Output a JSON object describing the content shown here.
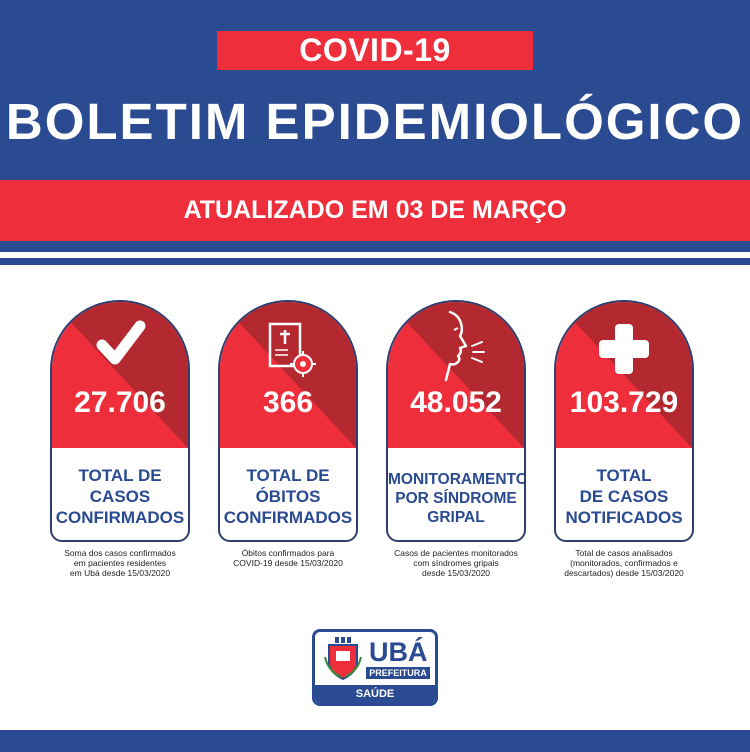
{
  "header": {
    "tag": "COVID-19",
    "title": "BOLETIM EPIDEMIOLÓGICO",
    "updated": "ATUALIZADO EM 03 DE MARÇO"
  },
  "colors": {
    "blue": "#2a4a91",
    "red": "#ee2f3b",
    "dark_red": "#b3292f"
  },
  "cards": [
    {
      "icon": "checkmark-icon",
      "number": "27.706",
      "label_lines": [
        "TOTAL DE",
        "CASOS",
        "CONFIRMADOS"
      ],
      "caption_lines": [
        "Soma dos casos confirmados",
        "em pacientes residentes",
        "em Ubá desde 15/03/2020"
      ]
    },
    {
      "icon": "death-certificate-virus-icon",
      "number": "366",
      "label_lines": [
        "TOTAL DE",
        "ÓBITOS",
        "CONFIRMADOS"
      ],
      "caption_lines": [
        "Óbitos confirmados para",
        "COVID-19 desde 15/03/2020"
      ]
    },
    {
      "icon": "coughing-face-icon",
      "number": "48.052",
      "label_lines": [
        "MONITORAMENTO",
        "POR SÍNDROME",
        "GRIPAL"
      ],
      "caption_lines": [
        "Casos de pacientes monitorados",
        "com síndromes gripais",
        "desde 15/03/2020"
      ]
    },
    {
      "icon": "medical-cross-icon",
      "number": "103.729",
      "label_lines": [
        "TOTAL",
        "DE CASOS",
        "NOTIFICADOS"
      ],
      "caption_lines": [
        "Total de casos analisados",
        "(monitorados, confirmados e",
        "descartados) desde 15/03/2020"
      ]
    }
  ],
  "logo": {
    "name": "UBÁ",
    "subtitle": "PREFEITURA",
    "department": "SAÚDE"
  }
}
